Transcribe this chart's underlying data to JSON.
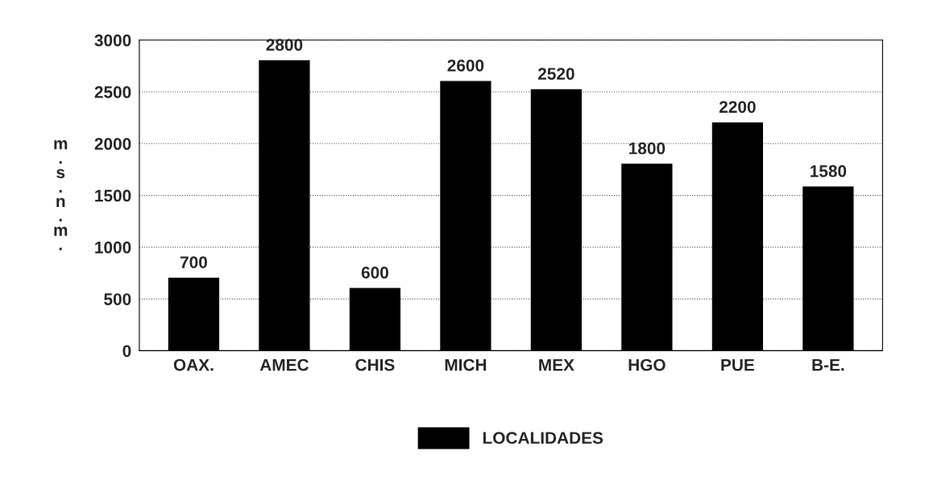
{
  "chart_data": {
    "type": "bar",
    "ylabel": "m.s.n.m.",
    "categories": [
      "OAX.",
      "AMEC",
      "CHIS",
      "MICH",
      "MEX",
      "HGO",
      "PUE",
      "B-E."
    ],
    "series": [
      {
        "name": "LOCALIDADES",
        "color": "#000000",
        "values": [
          700,
          2800,
          600,
          2600,
          2520,
          1800,
          2200,
          1580
        ]
      }
    ],
    "ylim": [
      0,
      3000
    ],
    "yticks": [
      0,
      500,
      1000,
      1500,
      2000,
      2500,
      3000
    ],
    "grid": "y",
    "legend": "bottom",
    "data_labels": true
  }
}
